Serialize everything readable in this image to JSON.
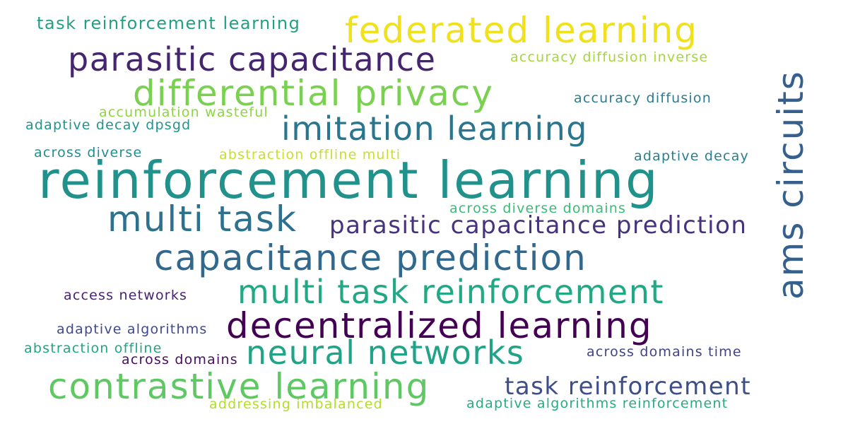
{
  "words": [
    {
      "text": "task reinforcement learning",
      "color": "#23a083"
    },
    {
      "text": "federated learning",
      "color": "#f0e11a"
    },
    {
      "text": "parasitic capacitance",
      "color": "#44256e"
    },
    {
      "text": "accuracy diffusion inverse",
      "color": "#a5d63e"
    },
    {
      "text": "differential privacy",
      "color": "#7ad151"
    },
    {
      "text": "accuracy diffusion",
      "color": "#2b7c8e"
    },
    {
      "text": "accumulation wasteful",
      "color": "#8ed542"
    },
    {
      "text": "imitation learning",
      "color": "#2a768e"
    },
    {
      "text": "adaptive decay dpsgd",
      "color": "#1f958b"
    },
    {
      "text": "across diverse",
      "color": "#218f8c"
    },
    {
      "text": "abstraction offline multi",
      "color": "#c8de2c"
    },
    {
      "text": "adaptive decay",
      "color": "#2a7f8e"
    },
    {
      "text": "reinforcement learning",
      "color": "#21918c"
    },
    {
      "text": "ams circuits",
      "color": "#35608d"
    },
    {
      "text": "across diverse domains",
      "color": "#3bbb75"
    },
    {
      "text": "multi task",
      "color": "#2d718e"
    },
    {
      "text": "parasitic capacitance prediction",
      "color": "#46327e"
    },
    {
      "text": "capacitance prediction",
      "color": "#31688e"
    },
    {
      "text": "multi task reinforcement",
      "color": "#22a884"
    },
    {
      "text": "access networks",
      "color": "#482173"
    },
    {
      "text": "decentralized learning",
      "color": "#440154"
    },
    {
      "text": "adaptive algorithms",
      "color": "#3e4a89"
    },
    {
      "text": "neural networks",
      "color": "#20a386"
    },
    {
      "text": "abstraction offline",
      "color": "#21a585"
    },
    {
      "text": "across domains time",
      "color": "#414487"
    },
    {
      "text": "across domains",
      "color": "#470e61"
    },
    {
      "text": "contrastive learning",
      "color": "#5ec962"
    },
    {
      "text": "task reinforcement",
      "color": "#3d4e8a"
    },
    {
      "text": "addressing imbalanced",
      "color": "#b2dd2d"
    },
    {
      "text": "adaptive algorithms reinforcement",
      "color": "#25ac82"
    }
  ]
}
